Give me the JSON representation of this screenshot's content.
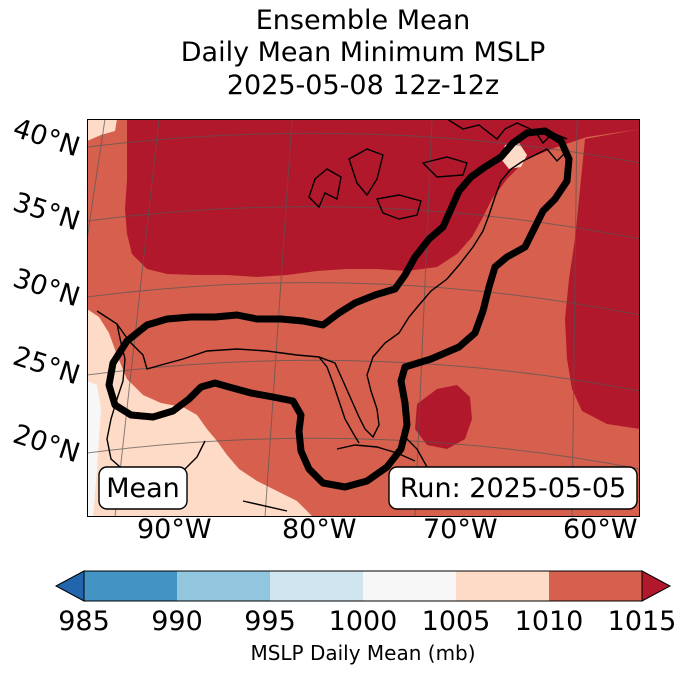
{
  "title": {
    "line1": "Ensemble Mean",
    "line2": "Daily Mean Minimum MSLP",
    "line3": "2025-05-08 12z-12z"
  },
  "lat_labels": [
    "40°N",
    "35°N",
    "30°N",
    "25°N",
    "20°N"
  ],
  "lon_labels": [
    "90°W",
    "80°W",
    "70°W",
    "60°W"
  ],
  "boxes": {
    "left": "Mean",
    "right": "Run: 2025-05-05"
  },
  "colorbar": {
    "label": "MSLP Daily Mean (mb)",
    "ticks": [
      "985",
      "990",
      "995",
      "1000",
      "1005",
      "1010",
      "1015"
    ],
    "colors": [
      "#2166ac",
      "#4393c3",
      "#92c5de",
      "#d1e5f0",
      "#f7f7f7",
      "#fddbc7",
      "#d6604d",
      "#b2182b"
    ]
  },
  "fill_colors": {
    "c1000": "#f7f7f7",
    "c1005": "#fddbc7",
    "c1010": "#d6604d",
    "c1015": "#b2182b",
    "contour": "#000000"
  }
}
